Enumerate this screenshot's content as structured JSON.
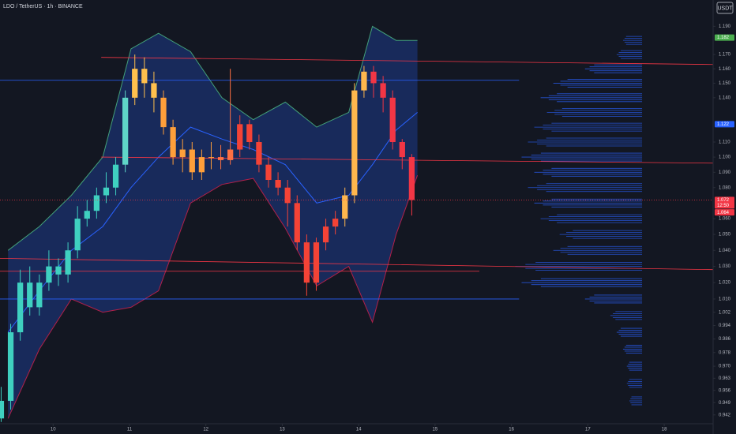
{
  "chart_data": {
    "type": "candlestick",
    "title": "LDO / TetherUS · 1h · BINANCE",
    "currency": "USDT",
    "log_scale": true,
    "background": "#131722",
    "xlim": [
      9.305,
      18.64
    ],
    "xticks": [
      10,
      11,
      12,
      13,
      14,
      15,
      16,
      17,
      18
    ],
    "ylim": [
      0.937,
      1.209
    ],
    "yticks": [
      {
        "value": 1.19,
        "label": "1.190"
      },
      {
        "value": 1.17,
        "label": "1.170"
      },
      {
        "value": 1.16,
        "label": "1.160"
      },
      {
        "value": 1.15,
        "label": "1.150"
      },
      {
        "value": 1.14,
        "label": "1.140"
      },
      {
        "value": 1.11,
        "label": "1.110"
      },
      {
        "value": 1.1,
        "label": "1.100"
      },
      {
        "value": 1.09,
        "label": "1.090"
      },
      {
        "value": 1.08,
        "label": "1.080"
      },
      {
        "value": 1.06,
        "label": "1.060"
      },
      {
        "value": 1.05,
        "label": "1.050"
      },
      {
        "value": 1.04,
        "label": "1.040"
      },
      {
        "value": 1.03,
        "label": "1.030"
      },
      {
        "value": 1.02,
        "label": "1.020"
      },
      {
        "value": 1.01,
        "label": "1.010"
      },
      {
        "value": 1.002,
        "label": "1.002"
      },
      {
        "value": 0.994,
        "label": "0.994"
      },
      {
        "value": 0.986,
        "label": "0.986"
      },
      {
        "value": 0.978,
        "label": "0.978"
      },
      {
        "value": 0.97,
        "label": "0.970"
      },
      {
        "value": 0.963,
        "label": "0.963"
      },
      {
        "value": 0.956,
        "label": "0.956"
      },
      {
        "value": 0.949,
        "label": "0.949"
      },
      {
        "value": 0.942,
        "label": "0.942"
      }
    ],
    "x": [
      9.32,
      9.445,
      9.57,
      9.695,
      9.82,
      9.945,
      10.07,
      10.195,
      10.32,
      10.445,
      10.57,
      10.695,
      10.82,
      10.945,
      11.07,
      11.195,
      11.32,
      11.445,
      11.57,
      11.695,
      11.82,
      11.945,
      12.07,
      12.195,
      12.32,
      12.445,
      12.57,
      12.695,
      12.82,
      12.945,
      13.07,
      13.195,
      13.32,
      13.445,
      13.57,
      13.695,
      13.82,
      13.945,
      14.07,
      14.195,
      14.32,
      14.445,
      14.57,
      14.695
    ],
    "open": [
      0.94,
      0.95,
      0.99,
      1.02,
      1.005,
      1.02,
      1.03,
      1.025,
      1.04,
      1.06,
      1.065,
      1.075,
      1.08,
      1.095,
      1.14,
      1.16,
      1.15,
      1.14,
      1.12,
      1.1,
      1.105,
      1.09,
      1.1,
      1.1,
      1.098,
      1.105,
      1.122,
      1.11,
      1.095,
      1.085,
      1.08,
      1.07,
      1.045,
      1.02,
      1.045,
      1.055,
      1.06,
      1.075,
      1.145,
      1.158,
      1.15,
      1.14,
      1.11,
      1.1
    ],
    "high": [
      0.958,
      0.995,
      1.028,
      1.03,
      1.025,
      1.04,
      1.035,
      1.045,
      1.068,
      1.072,
      1.08,
      1.09,
      1.1,
      1.145,
      1.17,
      1.168,
      1.158,
      1.145,
      1.125,
      1.112,
      1.11,
      1.105,
      1.11,
      1.108,
      1.16,
      1.128,
      1.125,
      1.115,
      1.1,
      1.09,
      1.085,
      1.075,
      1.05,
      1.048,
      1.06,
      1.065,
      1.08,
      1.15,
      1.162,
      1.162,
      1.155,
      1.145,
      1.112,
      1.102
    ],
    "low": [
      0.938,
      0.945,
      0.985,
      1.0,
      1.0,
      1.015,
      1.018,
      1.02,
      1.035,
      1.055,
      1.06,
      1.07,
      1.075,
      1.09,
      1.135,
      1.14,
      1.13,
      1.115,
      1.095,
      1.09,
      1.085,
      1.085,
      1.092,
      1.092,
      1.095,
      1.1,
      1.105,
      1.09,
      1.08,
      1.075,
      1.055,
      1.04,
      1.012,
      1.015,
      1.04,
      1.05,
      1.055,
      1.07,
      1.14,
      1.14,
      1.13,
      1.105,
      1.092,
      1.062
    ],
    "close": [
      0.95,
      0.99,
      1.02,
      1.005,
      1.02,
      1.03,
      1.025,
      1.04,
      1.06,
      1.065,
      1.075,
      1.08,
      1.095,
      1.14,
      1.16,
      1.15,
      1.14,
      1.12,
      1.1,
      1.105,
      1.09,
      1.1,
      1.1,
      1.098,
      1.105,
      1.122,
      1.11,
      1.095,
      1.085,
      1.08,
      1.07,
      1.045,
      1.02,
      1.045,
      1.055,
      1.06,
      1.075,
      1.145,
      1.158,
      1.15,
      1.14,
      1.11,
      1.1,
      1.072
    ],
    "colors": [
      "#3fd0c0",
      "#3fd0c0",
      "#3fd0c0",
      "#3fd0c0",
      "#3fd0c0",
      "#3fd0c0",
      "#3fd0c0",
      "#3fd0c0",
      "#3fd0c0",
      "#3fd0c0",
      "#3fd0c0",
      "#3fd0c0",
      "#3fd0c0",
      "#5fd6c8",
      "#ffc04d",
      "#ffc04d",
      "#ffc04d",
      "#ff9f3a",
      "#ff9f3a",
      "#ff9f3a",
      "#ff9f3a",
      "#ff9f3a",
      "#ff9f3a",
      "#ff7043",
      "#ff7043",
      "#f44336",
      "#f44336",
      "#f44336",
      "#f44336",
      "#f44336",
      "#f44336",
      "#f44336",
      "#f44336",
      "#f44336",
      "#f44336",
      "#f44336",
      "#ffb74d",
      "#ffb74d",
      "#ffb74d",
      "#f23645",
      "#f23645",
      "#f23645",
      "#f23645",
      "#f23645"
    ],
    "bands": {
      "x": [
        9.41,
        9.82,
        10.24,
        10.65,
        11.02,
        11.38,
        11.8,
        12.21,
        12.62,
        13.04,
        13.45,
        13.87,
        14.18,
        14.49,
        14.77
      ],
      "upper": [
        1.04,
        1.055,
        1.075,
        1.1,
        1.174,
        1.185,
        1.172,
        1.14,
        1.125,
        1.137,
        1.12,
        1.13,
        1.19,
        1.18,
        1.18
      ],
      "basis": [
        0.99,
        1.015,
        1.04,
        1.055,
        1.08,
        1.1,
        1.12,
        1.112,
        1.105,
        1.095,
        1.07,
        1.075,
        1.095,
        1.118,
        1.13
      ],
      "lower": [
        0.94,
        0.98,
        1.01,
        1.002,
        1.005,
        1.015,
        1.07,
        1.082,
        1.086,
        1.054,
        1.018,
        1.03,
        0.996,
        1.05,
        1.088
      ],
      "upper_color": "#43a07a",
      "basis_color": "#2962ff",
      "lower_color": "#b2204a",
      "fill": "#1e3a8a"
    },
    "levels": [
      {
        "x": [
          10.63,
          18.64
        ],
        "y": [
          1.168,
          1.163
        ],
        "color": "#f23645"
      },
      {
        "x": [
          9.305,
          16.1
        ],
        "y": [
          1.152,
          1.152
        ],
        "color": "#2962ff"
      },
      {
        "x": [
          10.63,
          18.64
        ],
        "y": [
          1.1,
          1.096
        ],
        "color": "#f23645"
      },
      {
        "x": [
          9.305,
          18.64
        ],
        "y": [
          1.035,
          1.028
        ],
        "color": "#f23645"
      },
      {
        "x": [
          9.305,
          15.58
        ],
        "y": [
          1.027,
          1.027
        ],
        "color": "#f23645"
      },
      {
        "x": [
          9.305,
          16.1
        ],
        "y": [
          1.01,
          1.01
        ],
        "color": "#2962ff"
      }
    ],
    "volume_profile": {
      "right_x": 17.71,
      "max_days": 1.66,
      "color": "#2962ff",
      "prices": [
        0.95,
        0.96,
        0.97,
        0.98,
        0.99,
        1.0,
        1.01,
        1.02,
        1.03,
        1.04,
        1.05,
        1.06,
        1.07,
        1.08,
        1.09,
        1.1,
        1.11,
        1.12,
        1.13,
        1.14,
        1.15,
        1.16,
        1.17,
        1.18
      ],
      "values": [
        10,
        12,
        12,
        15,
        20,
        25,
        45,
        95,
        100,
        70,
        65,
        80,
        85,
        90,
        85,
        95,
        90,
        85,
        75,
        80,
        70,
        45,
        20,
        15
      ]
    },
    "badges": [
      {
        "value": 1.182,
        "label": "1.182",
        "color": "#4caf50"
      },
      {
        "value": 1.122,
        "label": "1.122",
        "color": "#2962ff"
      },
      {
        "value": 1.072,
        "label": "1.072",
        "sublabel": "12:50",
        "color": "#f23645"
      },
      {
        "value": 1.064,
        "label": "1.064",
        "color": "#f23645"
      }
    ]
  }
}
